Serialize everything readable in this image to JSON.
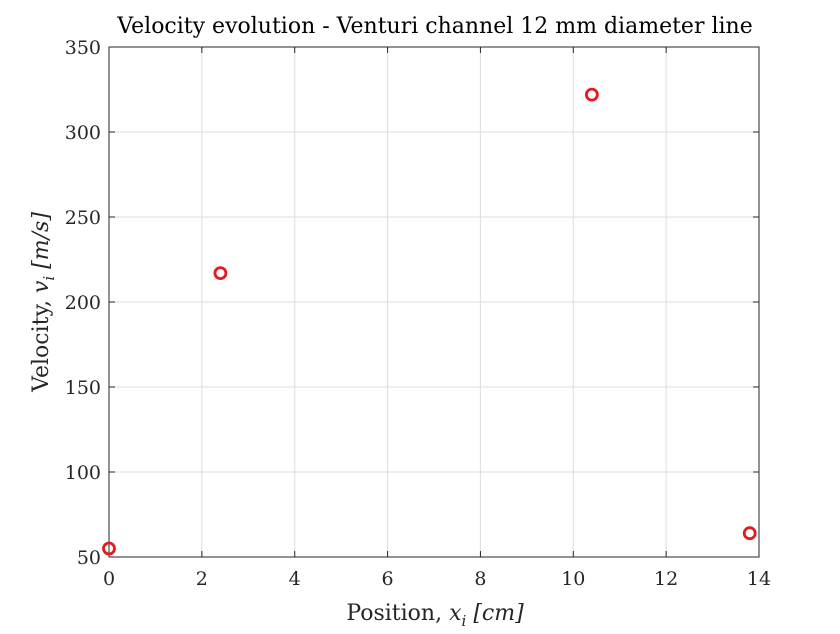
{
  "chart_data": {
    "type": "scatter",
    "title": "Velocity evolution - Venturi channel 12 mm diameter line",
    "xlabel": {
      "prefix": "Position, ",
      "var": "x",
      "sub": "i",
      "unit": "[cm]"
    },
    "ylabel": {
      "prefix": "Velocity, ",
      "var": "v",
      "sub": "i",
      "unit": "[m/s]"
    },
    "xlim": [
      0,
      14
    ],
    "ylim": [
      50,
      350
    ],
    "xticks": [
      0,
      2,
      4,
      6,
      8,
      10,
      12,
      14
    ],
    "yticks": [
      50,
      100,
      150,
      200,
      250,
      300,
      350
    ],
    "xtick_labels": [
      "0",
      "2",
      "4",
      "6",
      "8",
      "10",
      "12",
      "14"
    ],
    "ytick_labels": [
      "50",
      "100",
      "150",
      "200",
      "250",
      "300",
      "350"
    ],
    "grid": true,
    "marker": "circle-open",
    "series": [
      {
        "x": [
          0,
          2.4,
          10.4,
          13.8
        ],
        "y": [
          55,
          217,
          322,
          64
        ],
        "color": "#e41a1c"
      }
    ]
  }
}
